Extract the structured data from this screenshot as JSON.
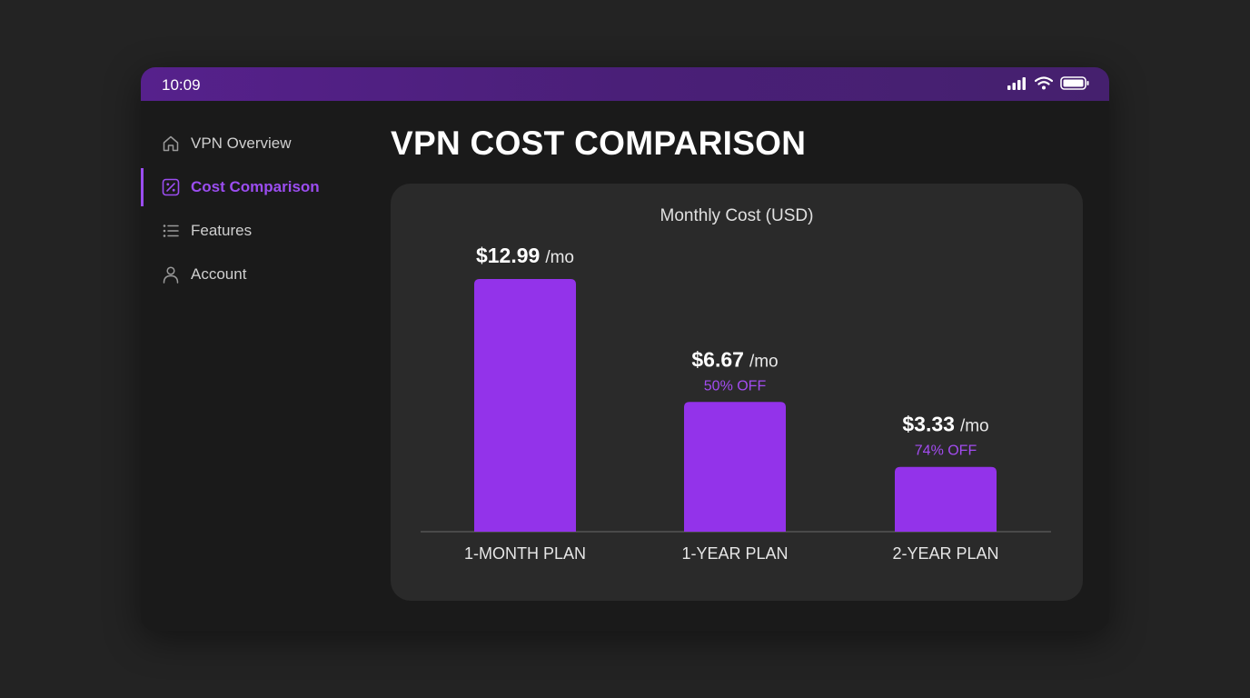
{
  "status_bar": {
    "time": "10:09",
    "icons": [
      "signal-icon",
      "wifi-icon",
      "battery-icon"
    ]
  },
  "sidebar": {
    "items": [
      {
        "label": "VPN Overview",
        "icon": "home-icon",
        "active": false
      },
      {
        "label": "Cost Comparison",
        "icon": "percent-icon",
        "active": true
      },
      {
        "label": "Features",
        "icon": "list-icon",
        "active": false
      },
      {
        "label": "Account",
        "icon": "user-icon",
        "active": false
      }
    ]
  },
  "page": {
    "title": "VPN COST COMPARISON"
  },
  "colors": {
    "accent": "#9b4df0",
    "bar": "#9333ea",
    "discount": "#a34cf0",
    "card": "#2a2a2a",
    "status_bar": "#56218c"
  },
  "chart_data": {
    "type": "bar",
    "title": "Monthly Cost (USD)",
    "categories": [
      "1-MONTH PLAN",
      "1-YEAR PLAN",
      "2-YEAR PLAN"
    ],
    "values": [
      12.99,
      6.67,
      3.33
    ],
    "value_labels": [
      "$12.99",
      "$6.67",
      "$3.33"
    ],
    "unit_suffix": "/mo",
    "discounts": [
      "",
      "50% OFF",
      "74% OFF"
    ],
    "ylim": [
      0,
      12.99
    ],
    "grid": false,
    "legend": "none"
  }
}
